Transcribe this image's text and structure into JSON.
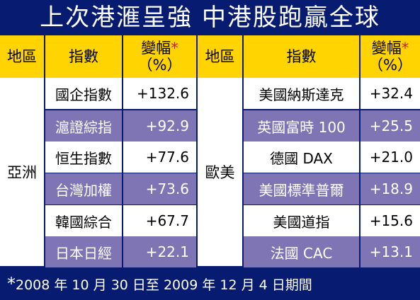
{
  "title": "上次港滙呈強 中港股跑贏全球",
  "headers": {
    "region": "地區",
    "index": "指數",
    "change_line1": "變幅",
    "change_star": "*",
    "change_line2": "（%）"
  },
  "left": {
    "region": "亞洲",
    "rows": [
      {
        "name": "國企指數",
        "value": "+132.6"
      },
      {
        "name": "滬證綜指",
        "value": "+92.9"
      },
      {
        "name": "恒生指數",
        "value": "+77.6"
      },
      {
        "name": "台灣加權",
        "value": "+73.6"
      },
      {
        "name": "韓國綜合",
        "value": "+67.7"
      },
      {
        "name": "日本日經",
        "value": "+22.1"
      }
    ]
  },
  "right": {
    "region": "歐美",
    "rows": [
      {
        "name": "美國納斯達克",
        "value": "+32.4"
      },
      {
        "name": "英國富時 100",
        "value": "+25.5"
      },
      {
        "name": "德國 DAX",
        "value": "+21.0"
      },
      {
        "name": "美國標準普爾",
        "value": "+18.9"
      },
      {
        "name": "美國道指",
        "value": "+15.6"
      },
      {
        "name": "法國 CAC",
        "value": "+13.1"
      }
    ]
  },
  "footnote": {
    "mark": "*",
    "text": "2008 年 10 月 30 日至 2009 年 12 月 4 日期間"
  },
  "colors": {
    "background": "#071c70",
    "header": "#ffd400",
    "stripe": "#8075b4",
    "star": "#c0272d"
  }
}
